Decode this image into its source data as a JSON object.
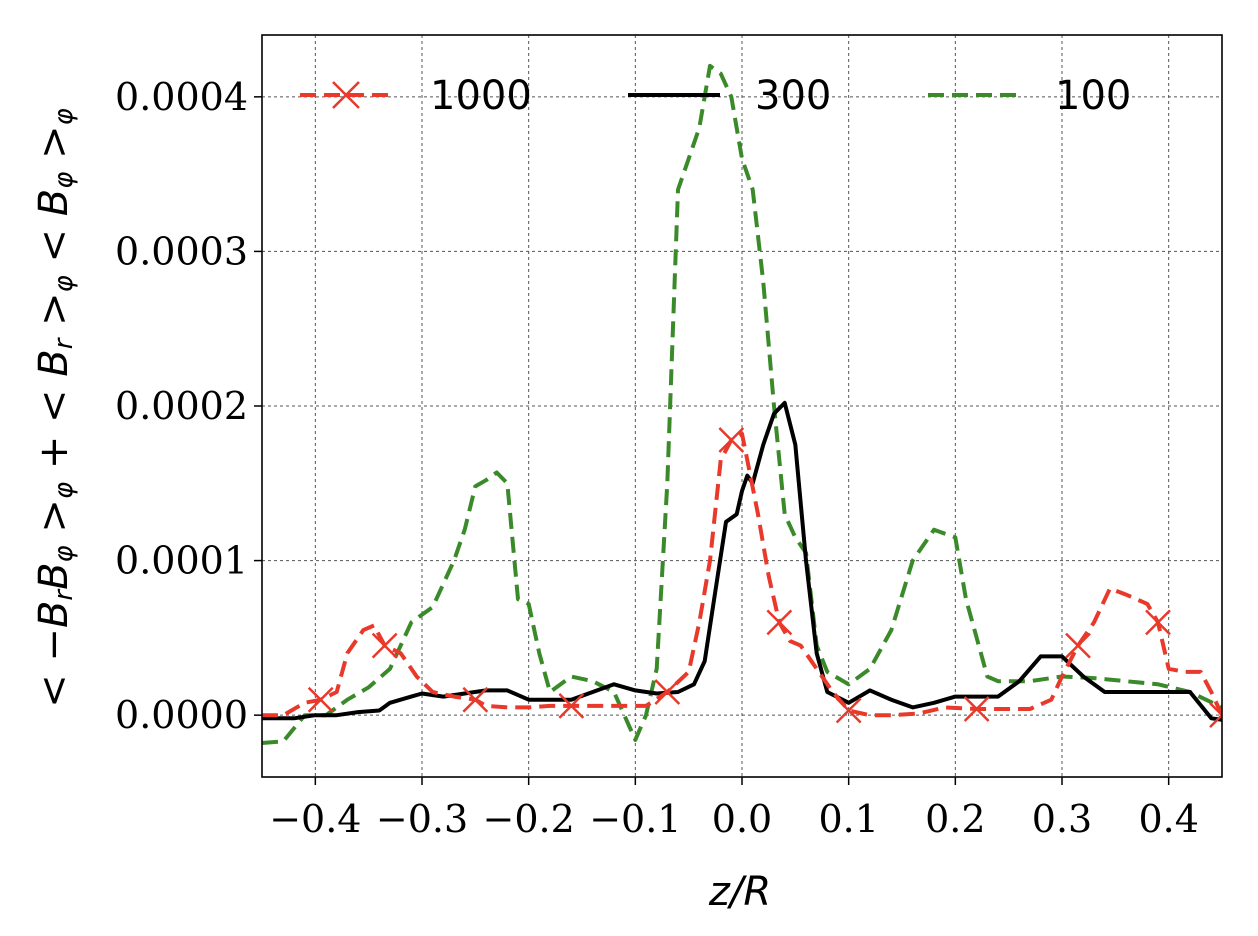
{
  "chart_data": {
    "type": "line",
    "title": "",
    "xlabel": "z/R",
    "ylabel": "<−B_rB_φ>_φ + <B_r>_φ<B_φ>_φ",
    "xlim": [
      -0.45,
      0.45
    ],
    "ylim": [
      -4e-05,
      0.00044
    ],
    "x_ticks": [
      -0.4,
      -0.3,
      -0.2,
      -0.1,
      0.0,
      0.1,
      0.2,
      0.3,
      0.4
    ],
    "x_tick_labels": [
      "−0.4",
      "−0.3",
      "−0.2",
      "−0.1",
      "0.0",
      "0.1",
      "0.2",
      "0.3",
      "0.4"
    ],
    "y_ticks": [
      0.0,
      0.0001,
      0.0002,
      0.0003,
      0.0004
    ],
    "y_tick_labels": [
      "0.0000",
      "0.0001",
      "0.0002",
      "0.0003",
      "0.0004"
    ],
    "grid": true,
    "legend": {
      "position": "top",
      "columns": 3
    },
    "series": [
      {
        "name": "1000",
        "color": "#e8392b",
        "style": "dashed",
        "marker": "x",
        "x": [
          -0.45,
          -0.43,
          -0.41,
          -0.395,
          -0.38,
          -0.37,
          -0.355,
          -0.345,
          -0.335,
          -0.32,
          -0.305,
          -0.29,
          -0.27,
          -0.25,
          -0.24,
          -0.22,
          -0.2,
          -0.18,
          -0.16,
          -0.145,
          -0.13,
          -0.11,
          -0.09,
          -0.07,
          -0.05,
          -0.04,
          -0.03,
          -0.02,
          -0.01,
          0.0,
          0.005,
          0.015,
          0.025,
          0.035,
          0.045,
          0.055,
          0.07,
          0.085,
          0.1,
          0.12,
          0.14,
          0.165,
          0.19,
          0.22,
          0.245,
          0.27,
          0.29,
          0.3,
          0.315,
          0.33,
          0.345,
          0.36,
          0.38,
          0.39,
          0.4,
          0.415,
          0.43,
          0.44,
          0.45
        ],
        "y": [
          0.0,
          0.0,
          8e-06,
          1e-05,
          1.5e-05,
          4e-05,
          5.5e-05,
          5.8e-05,
          4.5e-05,
          4e-05,
          2.5e-05,
          1.5e-05,
          1.2e-05,
          1e-05,
          6e-06,
          5e-06,
          5e-06,
          6e-06,
          6e-06,
          6e-06,
          6e-06,
          6e-06,
          6e-06,
          1.5e-05,
          2.8e-05,
          6e-05,
          0.0001,
          0.000165,
          0.000178,
          0.000182,
          0.000165,
          0.00013,
          9e-05,
          6e-05,
          4.8e-05,
          4.5e-05,
          3e-05,
          1.5e-05,
          3e-06,
          0.0,
          0.0,
          1e-06,
          5e-06,
          4e-06,
          4e-06,
          4e-06,
          1e-05,
          2.5e-05,
          4.5e-05,
          6e-05,
          8.2e-05,
          7.8e-05,
          7.2e-05,
          6e-05,
          3e-05,
          2.8e-05,
          2.8e-05,
          1.5e-05,
          0.0
        ]
      },
      {
        "name": "300",
        "color": "#000000",
        "style": "solid",
        "marker": "",
        "x": [
          -0.45,
          -0.42,
          -0.4,
          -0.38,
          -0.36,
          -0.34,
          -0.33,
          -0.31,
          -0.3,
          -0.28,
          -0.26,
          -0.24,
          -0.22,
          -0.2,
          -0.18,
          -0.16,
          -0.14,
          -0.12,
          -0.1,
          -0.08,
          -0.06,
          -0.045,
          -0.035,
          -0.025,
          -0.015,
          -0.005,
          0.0,
          0.005,
          0.01,
          0.02,
          0.03,
          0.04,
          0.05,
          0.06,
          0.07,
          0.08,
          0.1,
          0.12,
          0.14,
          0.16,
          0.18,
          0.2,
          0.22,
          0.24,
          0.26,
          0.28,
          0.3,
          0.32,
          0.34,
          0.36,
          0.38,
          0.4,
          0.42,
          0.44,
          0.45
        ],
        "y": [
          -2e-06,
          -2e-06,
          0.0,
          0.0,
          2e-06,
          3e-06,
          8e-06,
          1.2e-05,
          1.4e-05,
          1.2e-05,
          1.4e-05,
          1.6e-05,
          1.6e-05,
          1e-05,
          1e-05,
          1e-05,
          1.5e-05,
          2e-05,
          1.6e-05,
          1.4e-05,
          1.5e-05,
          2e-05,
          3.5e-05,
          8e-05,
          0.000125,
          0.00013,
          0.000145,
          0.000155,
          0.00015,
          0.000175,
          0.000195,
          0.000202,
          0.000175,
          0.0001,
          4e-05,
          1.5e-05,
          8e-06,
          1.6e-05,
          1e-05,
          5e-06,
          8e-06,
          1.2e-05,
          1.2e-05,
          1.2e-05,
          2.2e-05,
          3.8e-05,
          3.8e-05,
          2.5e-05,
          1.5e-05,
          1.5e-05,
          1.5e-05,
          1.5e-05,
          1.5e-05,
          -2e-06,
          -3e-06
        ]
      },
      {
        "name": "100",
        "color": "#3a8a2a",
        "style": "dashed",
        "marker": "",
        "x": [
          -0.45,
          -0.43,
          -0.41,
          -0.39,
          -0.37,
          -0.35,
          -0.33,
          -0.31,
          -0.29,
          -0.27,
          -0.26,
          -0.25,
          -0.24,
          -0.23,
          -0.22,
          -0.21,
          -0.2,
          -0.19,
          -0.18,
          -0.16,
          -0.14,
          -0.12,
          -0.1,
          -0.09,
          -0.08,
          -0.07,
          -0.06,
          -0.05,
          -0.04,
          -0.03,
          -0.02,
          -0.01,
          0.0,
          0.01,
          0.02,
          0.03,
          0.04,
          0.05,
          0.06,
          0.07,
          0.08,
          0.1,
          0.12,
          0.14,
          0.16,
          0.18,
          0.2,
          0.21,
          0.22,
          0.23,
          0.24,
          0.27,
          0.3,
          0.33,
          0.36,
          0.39,
          0.42,
          0.45
        ],
        "y": [
          -1.8e-05,
          -1.7e-05,
          0.0,
          0.0,
          1e-05,
          1.8e-05,
          3e-05,
          6e-05,
          7e-05,
          0.0001,
          0.00012,
          0.000148,
          0.000152,
          0.000157,
          0.00015,
          7.5e-05,
          7.2e-05,
          4e-05,
          1.5e-05,
          2.5e-05,
          2.2e-05,
          1.5e-05,
          -1.6e-05,
          0.0,
          3e-05,
          0.00015,
          0.00034,
          0.00036,
          0.00038,
          0.00042,
          0.000415,
          0.0004,
          0.00036,
          0.00034,
          0.00028,
          0.0002,
          0.00013,
          0.000115,
          0.000105,
          4.5e-05,
          2.8e-05,
          2e-05,
          3e-05,
          5.5e-05,
          0.0001,
          0.00012,
          0.000115,
          7.5e-05,
          5e-05,
          2.5e-05,
          2.2e-05,
          2.2e-05,
          2.5e-05,
          2.4e-05,
          2.2e-05,
          2e-05,
          1.5e-05,
          5e-06
        ]
      }
    ]
  }
}
